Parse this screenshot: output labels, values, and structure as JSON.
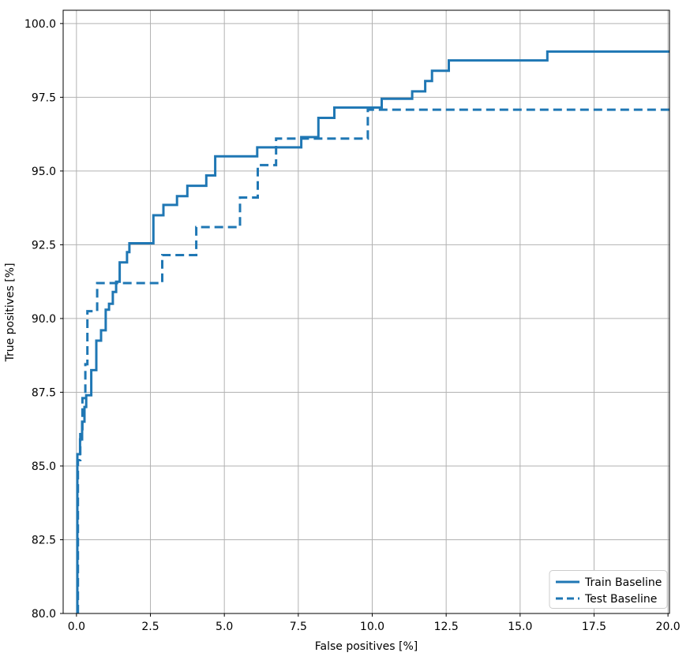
{
  "figure": {
    "background": "#ffffff",
    "accent_color": "#1f77b4",
    "grid_color": "#b2b2b2",
    "spine_color": "#000000",
    "legend_border_color": "#cccccc"
  },
  "chart_data": {
    "type": "line",
    "subtype": "roc-step-curves",
    "title": "",
    "xlabel": "False positives [%]",
    "ylabel": "True positives [%]",
    "xlim": [
      -0.45,
      20.05
    ],
    "ylim": [
      80.0,
      100.45
    ],
    "grid": true,
    "legend_position": "lower right",
    "x_ticks": [
      0.0,
      2.5,
      5.0,
      7.5,
      10.0,
      12.5,
      15.0,
      17.5,
      20.0
    ],
    "x_tick_labels": [
      "0.0",
      "2.5",
      "5.0",
      "7.5",
      "10.0",
      "12.5",
      "15.0",
      "17.5",
      "20.0"
    ],
    "y_ticks": [
      80.0,
      82.5,
      85.0,
      87.5,
      90.0,
      92.5,
      95.0,
      97.5,
      100.0
    ],
    "y_tick_labels": [
      "80.0",
      "82.5",
      "85.0",
      "87.5",
      "90.0",
      "92.5",
      "95.0",
      "97.5",
      "100.0"
    ],
    "series": [
      {
        "name": "Train Baseline",
        "style": "solid",
        "color": "#1f77b4",
        "start_x": 0.03,
        "start_y": 80.0,
        "end_x": 20.05,
        "steps": [
          [
            0.03,
            85.4
          ],
          [
            0.12,
            85.9
          ],
          [
            0.19,
            86.5
          ],
          [
            0.27,
            87.0
          ],
          [
            0.33,
            87.4
          ],
          [
            0.5,
            88.25
          ],
          [
            0.67,
            89.25
          ],
          [
            0.83,
            89.6
          ],
          [
            0.99,
            90.3
          ],
          [
            1.1,
            90.5
          ],
          [
            1.23,
            90.9
          ],
          [
            1.34,
            91.25
          ],
          [
            1.46,
            91.9
          ],
          [
            1.71,
            92.25
          ],
          [
            1.79,
            92.55
          ],
          [
            2.6,
            93.5
          ],
          [
            2.94,
            93.85
          ],
          [
            3.4,
            94.15
          ],
          [
            3.75,
            94.5
          ],
          [
            4.39,
            94.85
          ],
          [
            4.69,
            95.5
          ],
          [
            6.11,
            95.8
          ],
          [
            7.6,
            96.15
          ],
          [
            8.18,
            96.8
          ],
          [
            8.72,
            97.15
          ],
          [
            10.32,
            97.45
          ],
          [
            11.35,
            97.7
          ],
          [
            11.79,
            98.05
          ],
          [
            12.02,
            98.4
          ],
          [
            12.59,
            98.75
          ],
          [
            15.92,
            99.05
          ]
        ]
      },
      {
        "name": "Test Baseline",
        "style": "dashed",
        "color": "#1f77b4",
        "start_x": 0.05,
        "start_y": 80.0,
        "end_x": 20.05,
        "steps": [
          [
            0.05,
            85.2
          ],
          [
            0.13,
            86.2
          ],
          [
            0.2,
            87.3
          ],
          [
            0.3,
            88.45
          ],
          [
            0.37,
            90.25
          ],
          [
            0.7,
            91.2
          ],
          [
            2.9,
            92.15
          ],
          [
            4.05,
            93.1
          ],
          [
            5.53,
            94.1
          ],
          [
            6.13,
            95.2
          ],
          [
            6.75,
            96.1
          ],
          [
            9.85,
            97.08
          ]
        ]
      }
    ]
  },
  "legend": {
    "entries": [
      {
        "label": "Train Baseline",
        "style": "solid"
      },
      {
        "label": "Test Baseline",
        "style": "dashed"
      }
    ]
  }
}
